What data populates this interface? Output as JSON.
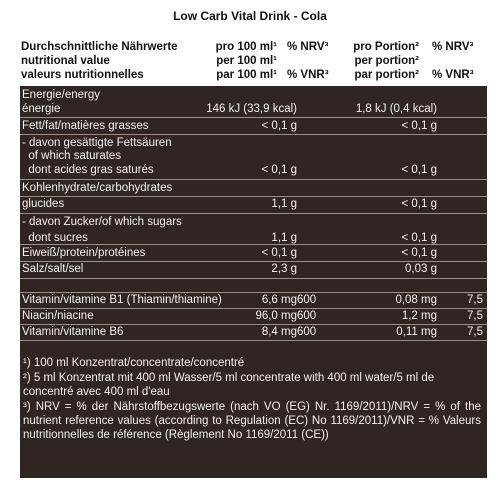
{
  "title": "Low Carb Vital Drink - Cola",
  "header": {
    "label_lines": [
      "Durchschnittliche Nährwerte",
      "nutritional value",
      "valeurs nutritionnelles"
    ],
    "per100_lines": [
      "pro 100 ml¹",
      "per 100 ml¹",
      "par 100 ml¹"
    ],
    "nrv100_lines": [
      "% NRV³",
      "",
      "% VNR³"
    ],
    "portion_lines": [
      "pro Portion²",
      "per portion²",
      "par portion²"
    ],
    "nrvportion_lines": [
      "% NRV³",
      "",
      "% VNR³"
    ]
  },
  "rows": [
    {
      "label": "Energie/energy",
      "v100": "",
      "nrv100": "",
      "vportion": "",
      "nrvportion": ""
    },
    {
      "label": "énergie",
      "v100": "146 kJ (33,9 kcal)",
      "nrv100": "",
      "vportion": "1,8 kJ (0,4 kcal)",
      "nrvportion": ""
    },
    {
      "label": "Fett/fat/matières grasses",
      "v100": "< 0,1 g",
      "nrv100": "",
      "vportion": "< 0,1 g",
      "nrvportion": ""
    },
    {
      "label": "- davon gesättigte Fettsäuren",
      "v100": "",
      "nrv100": "",
      "vportion": "",
      "nrvportion": ""
    },
    {
      "label": "  of which saturates",
      "v100": "",
      "nrv100": "",
      "vportion": "",
      "nrvportion": ""
    },
    {
      "label": "  dont acides gras saturés",
      "v100": "< 0,1 g",
      "nrv100": "",
      "vportion": "< 0,1 g",
      "nrvportion": ""
    },
    {
      "label": "Kohlenhydrate/carbohydrates",
      "v100": "",
      "nrv100": "",
      "vportion": "",
      "nrvportion": ""
    },
    {
      "label": "glucides",
      "v100": "1,1 g",
      "nrv100": "",
      "vportion": "< 0,1 g",
      "nrvportion": ""
    },
    {
      "label": "- davon Zucker/of which sugars",
      "v100": "",
      "nrv100": "",
      "vportion": "",
      "nrvportion": ""
    },
    {
      "label": "  dont sucres",
      "v100": "1,1 g",
      "nrv100": "",
      "vportion": "< 0,1 g",
      "nrvportion": ""
    },
    {
      "label": "Eiweiß/protein/protéines",
      "v100": "< 0,1 g",
      "nrv100": "",
      "vportion": "< 0,1 g",
      "nrvportion": ""
    },
    {
      "label": "Salz/salt/sel",
      "v100": "2,3 g",
      "nrv100": "",
      "vportion": "0,03 g",
      "nrvportion": ""
    },
    {
      "label": "Vitamin/vitamine B1 (Thiamin/thiamine)",
      "v100": "6,6 mg",
      "nrv100": "600",
      "vportion": "0,08 mg",
      "nrvportion": "7,5"
    },
    {
      "label": "Niacin/niacine",
      "v100": "96,0 mg",
      "nrv100": "600",
      "vportion": "1,2 mg",
      "nrvportion": "7,5"
    },
    {
      "label": "Vitamin/vitamine B6",
      "v100": "8,4 mg",
      "nrv100": "600",
      "vportion": "0,11 mg",
      "nrvportion": "7,5"
    }
  ],
  "footnotes": [
    "¹) 100 ml Konzentrat/concentrate/concentré",
    "²) 5 ml Konzentrat mit 400 ml Wasser/5 ml concentrate with 400 ml water/5 ml de concentré avec 400 ml d'eau",
    "³) NRV = % der Nährstoffbezugswerte (nach VO (EG) Nr. 1169/2011)/NRV = % of the nutrient reference values (according to Regulation (EC) No 1169/2011)/VNR = % Valeurs nutritionnelles de référence (Règlement No 1169/2011 (CE))"
  ]
}
